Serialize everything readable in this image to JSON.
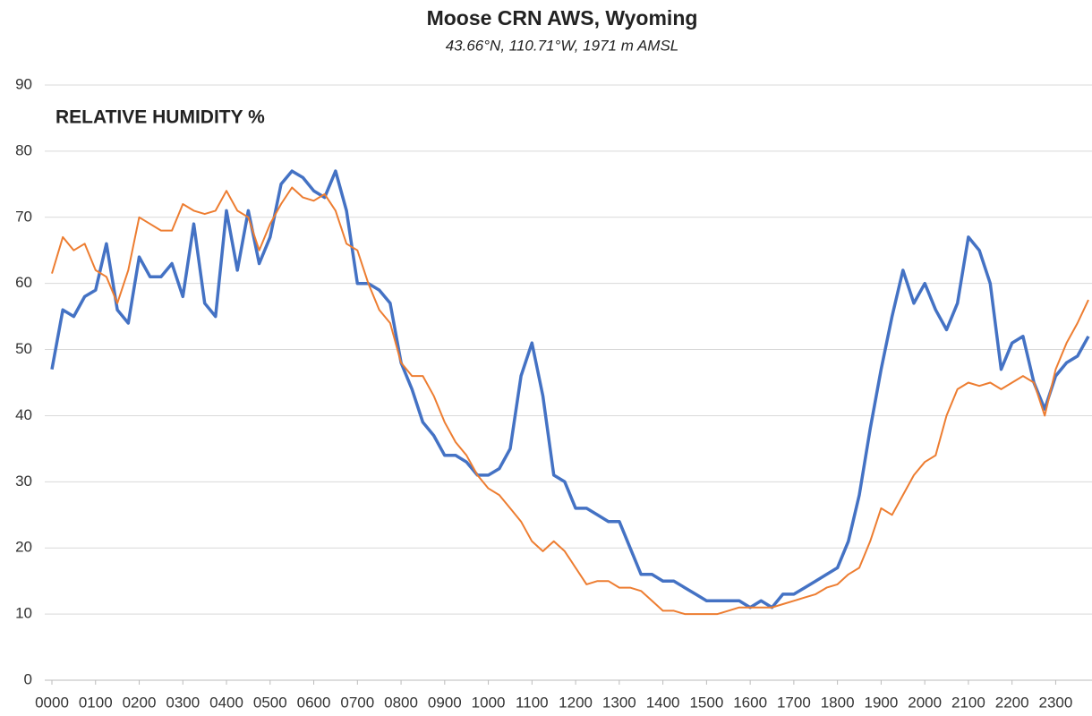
{
  "chart_data": {
    "type": "line",
    "title": "Moose CRN AWS, Wyoming",
    "subtitle": "43.66°N, 110.71°W, 1971 m AMSL",
    "annotation": "RELATIVE HUMIDITY %",
    "x": [
      0,
      0.25,
      0.5,
      0.75,
      1,
      1.25,
      1.5,
      1.75,
      2,
      2.25,
      2.5,
      2.75,
      3,
      3.25,
      3.5,
      3.75,
      4,
      4.25,
      4.5,
      4.75,
      5,
      5.25,
      5.5,
      5.75,
      6,
      6.25,
      6.5,
      6.75,
      7,
      7.25,
      7.5,
      7.75,
      8,
      8.25,
      8.5,
      8.75,
      9,
      9.25,
      9.5,
      9.75,
      10,
      10.25,
      10.5,
      10.75,
      11,
      11.25,
      11.5,
      11.75,
      12,
      12.25,
      12.5,
      12.75,
      13,
      13.25,
      13.5,
      13.75,
      14,
      14.25,
      14.5,
      14.75,
      15,
      15.25,
      15.5,
      15.75,
      16,
      16.25,
      16.5,
      16.75,
      17,
      17.25,
      17.5,
      17.75,
      18,
      18.25,
      18.5,
      18.75,
      19,
      19.25,
      19.5,
      19.75,
      20,
      20.25,
      20.5,
      20.75,
      21,
      21.25,
      21.5,
      21.75,
      22,
      22.25,
      22.5,
      22.75,
      23,
      23.25,
      23.5,
      23.75
    ],
    "series": [
      {
        "color": "#4472c4",
        "width": 3.5,
        "values": [
          47,
          56,
          55,
          58,
          59,
          66,
          56,
          54,
          64,
          61,
          61,
          63,
          58,
          69,
          57,
          55,
          71,
          62,
          71,
          63,
          67,
          75,
          77,
          76,
          74,
          73,
          77,
          71,
          60,
          60,
          59,
          57,
          48,
          44,
          39,
          37,
          34,
          34,
          33,
          31,
          31,
          32,
          35,
          46,
          51,
          43,
          31,
          30,
          26,
          26,
          25,
          24,
          24,
          20,
          16,
          16,
          15,
          15,
          14,
          13,
          12,
          12,
          12,
          12,
          11,
          12,
          11,
          13,
          13,
          14,
          15,
          16,
          17,
          21,
          28,
          38,
          47,
          55,
          62,
          57,
          60,
          56,
          53,
          57,
          67,
          65,
          60,
          47,
          51,
          52,
          45,
          41,
          46,
          48,
          49,
          52
        ]
      },
      {
        "color": "#ed7d31",
        "width": 2,
        "values": [
          61.5,
          67,
          65,
          66,
          62,
          61,
          57,
          62,
          70,
          69,
          68,
          68,
          72,
          71,
          70.5,
          71,
          74,
          71,
          70,
          65,
          69,
          72,
          74.5,
          73,
          72.5,
          73.5,
          71,
          66,
          65,
          60,
          56,
          54,
          48,
          46,
          46,
          43,
          39,
          36,
          34,
          31,
          29,
          28,
          26,
          24,
          21,
          19.5,
          21,
          19.5,
          17,
          14.5,
          15,
          15,
          14,
          14,
          13.5,
          12,
          10.5,
          10.5,
          10,
          10,
          10,
          10,
          10.5,
          11,
          11,
          11,
          11,
          11.5,
          12,
          12.5,
          13,
          14,
          14.5,
          16,
          17,
          21,
          26,
          25,
          28,
          31,
          33,
          34,
          40,
          44,
          45,
          44.5,
          45,
          44,
          45,
          46,
          45,
          40,
          47,
          51,
          54,
          57.5
        ]
      }
    ],
    "xlim": [
      0,
      23.75
    ],
    "xticks": [
      {
        "value": 0,
        "label": "0000"
      },
      {
        "value": 1,
        "label": "0100"
      },
      {
        "value": 2,
        "label": "0200"
      },
      {
        "value": 3,
        "label": "0300"
      },
      {
        "value": 4,
        "label": "0400"
      },
      {
        "value": 5,
        "label": "0500"
      },
      {
        "value": 6,
        "label": "0600"
      },
      {
        "value": 7,
        "label": "0700"
      },
      {
        "value": 8,
        "label": "0800"
      },
      {
        "value": 9,
        "label": "0900"
      },
      {
        "value": 10,
        "label": "1000"
      },
      {
        "value": 11,
        "label": "1100"
      },
      {
        "value": 12,
        "label": "1200"
      },
      {
        "value": 13,
        "label": "1300"
      },
      {
        "value": 14,
        "label": "1400"
      },
      {
        "value": 15,
        "label": "1500"
      },
      {
        "value": 16,
        "label": "1600"
      },
      {
        "value": 17,
        "label": "1700"
      },
      {
        "value": 18,
        "label": "1800"
      },
      {
        "value": 19,
        "label": "1900"
      },
      {
        "value": 20,
        "label": "2000"
      },
      {
        "value": 21,
        "label": "2100"
      },
      {
        "value": 22,
        "label": "2200"
      },
      {
        "value": 23,
        "label": "2300"
      }
    ],
    "ylim": [
      0,
      90
    ],
    "yticks": [
      0,
      10,
      20,
      30,
      40,
      50,
      60,
      70,
      80,
      90
    ],
    "grid": true
  }
}
